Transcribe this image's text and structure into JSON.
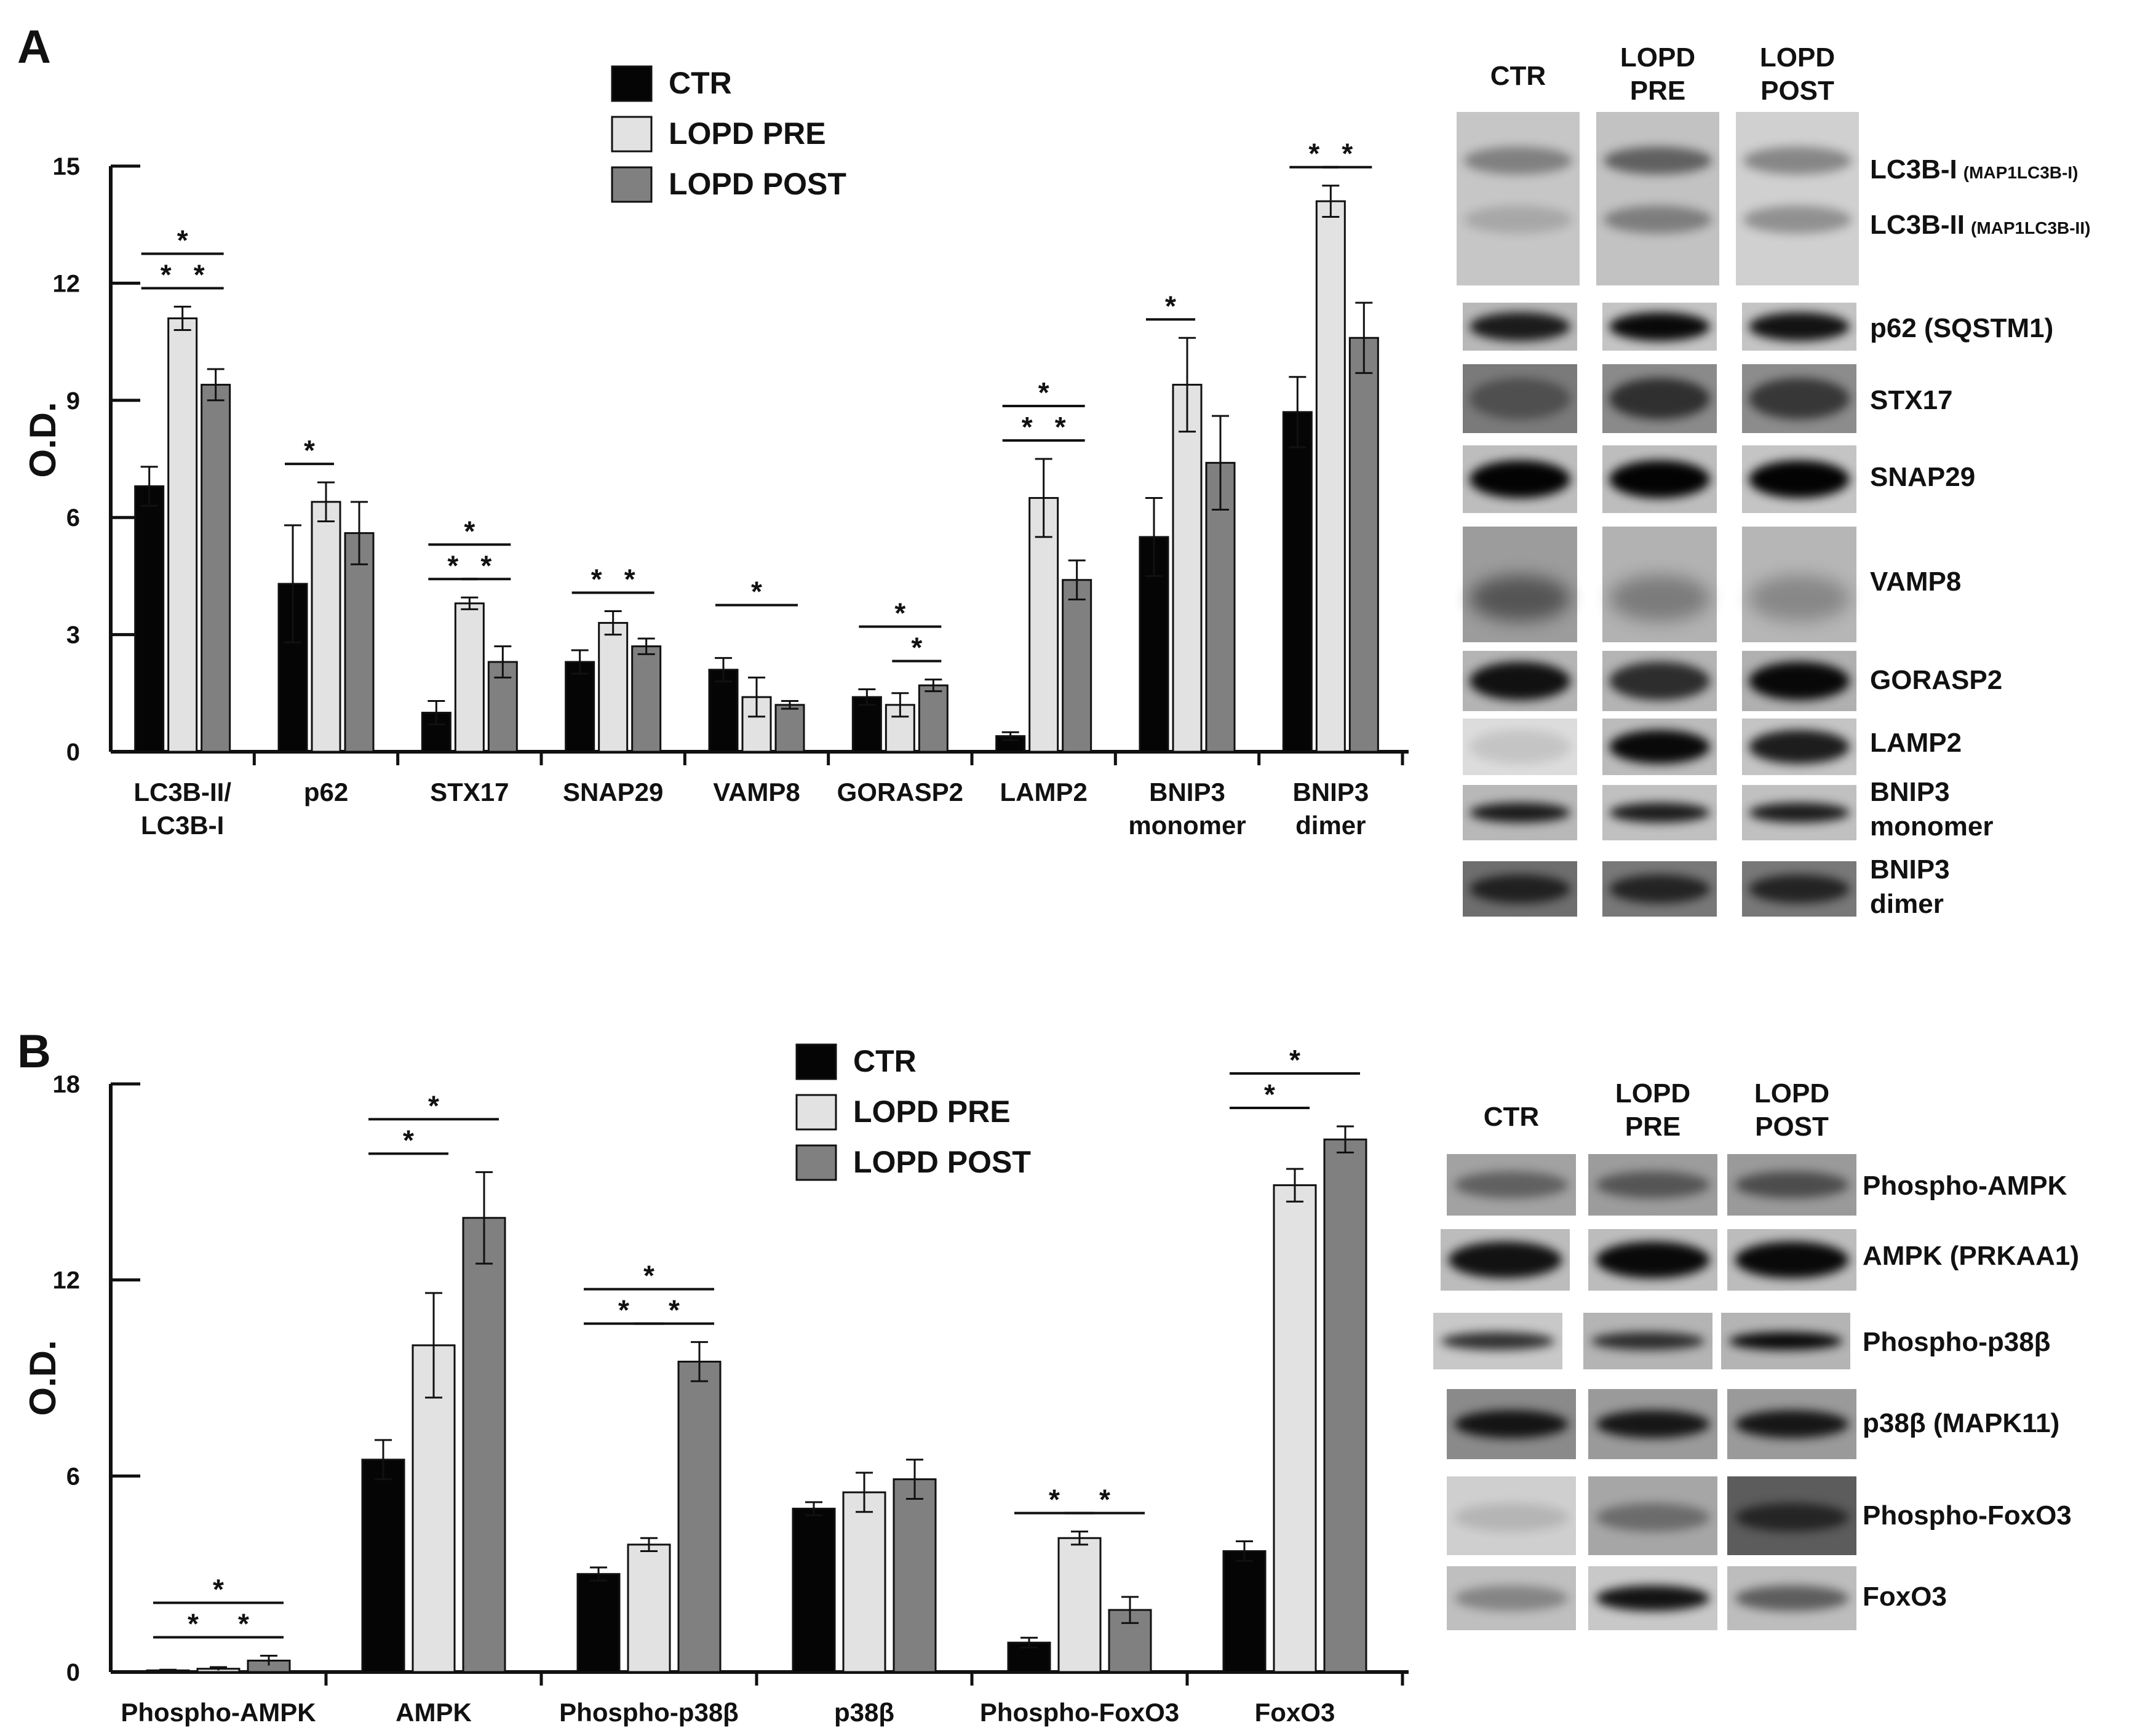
{
  "colors": {
    "ctr": "#050505",
    "pre": "#e2e2e2",
    "post": "#808080",
    "axis": "#111111"
  },
  "legend": [
    "CTR",
    "LOPD PRE",
    "LOPD POST"
  ],
  "chart_data": [
    {
      "panel": "A",
      "type": "bar",
      "ylabel": "O.D.",
      "ylim": [
        0,
        15
      ],
      "yticks": [
        0,
        3,
        6,
        9,
        12,
        15
      ],
      "categories": [
        [
          "LC3B-II/",
          "LC3B-I"
        ],
        [
          "p62"
        ],
        [
          "STX17"
        ],
        [
          "SNAP29"
        ],
        [
          "VAMP8"
        ],
        [
          "GORASP2"
        ],
        [
          "LAMP2"
        ],
        [
          "BNIP3",
          "monomer"
        ],
        [
          "BNIP3",
          "dimer"
        ]
      ],
      "series": [
        {
          "name": "CTR",
          "values": [
            6.8,
            4.3,
            1.0,
            2.3,
            2.1,
            1.4,
            0.4,
            5.5,
            8.7
          ],
          "errors": [
            0.5,
            1.5,
            0.3,
            0.3,
            0.3,
            0.2,
            0.1,
            1.0,
            0.9
          ]
        },
        {
          "name": "LOPD PRE",
          "values": [
            11.1,
            6.4,
            3.8,
            3.3,
            1.4,
            1.2,
            6.5,
            9.4,
            14.1
          ],
          "errors": [
            0.3,
            0.5,
            0.15,
            0.3,
            0.5,
            0.3,
            1.0,
            1.2,
            0.4
          ]
        },
        {
          "name": "LOPD POST",
          "values": [
            9.4,
            5.6,
            2.3,
            2.7,
            1.2,
            1.7,
            4.4,
            7.4,
            10.6
          ],
          "errors": [
            0.4,
            0.8,
            0.4,
            0.2,
            0.1,
            0.15,
            0.5,
            1.2,
            0.9
          ]
        }
      ],
      "significance": [
        {
          "cat": 0,
          "from": 0,
          "to": 1
        },
        {
          "cat": 0,
          "from": 1,
          "to": 2
        },
        {
          "cat": 0,
          "from": 0,
          "to": 2
        },
        {
          "cat": 1,
          "from": 0,
          "to": 1
        },
        {
          "cat": 2,
          "from": 0,
          "to": 1
        },
        {
          "cat": 2,
          "from": 1,
          "to": 2
        },
        {
          "cat": 2,
          "from": 0,
          "to": 2
        },
        {
          "cat": 3,
          "from": 0,
          "to": 1
        },
        {
          "cat": 3,
          "from": 1,
          "to": 2
        },
        {
          "cat": 4,
          "from": 0,
          "to": 2
        },
        {
          "cat": 5,
          "from": 1,
          "to": 2
        },
        {
          "cat": 5,
          "from": 0,
          "to": 2
        },
        {
          "cat": 6,
          "from": 0,
          "to": 1
        },
        {
          "cat": 6,
          "from": 1,
          "to": 2
        },
        {
          "cat": 6,
          "from": 0,
          "to": 2
        },
        {
          "cat": 7,
          "from": 0,
          "to": 1
        },
        {
          "cat": 8,
          "from": 0,
          "to": 1
        },
        {
          "cat": 8,
          "from": 1,
          "to": 2
        }
      ],
      "significance_mark": "*"
    },
    {
      "panel": "B",
      "type": "bar",
      "ylabel": "O.D.",
      "ylim": [
        0,
        18
      ],
      "yticks": [
        0,
        6,
        12,
        18
      ],
      "categories": [
        [
          "Phospho-AMPK"
        ],
        [
          "AMPK"
        ],
        [
          "Phospho-p38β"
        ],
        [
          "p38β"
        ],
        [
          "Phospho-FoxO3"
        ],
        [
          "FoxO3"
        ]
      ],
      "series": [
        {
          "name": "CTR",
          "values": [
            0.05,
            6.5,
            3.0,
            5.0,
            0.9,
            3.7
          ],
          "errors": [
            0.02,
            0.6,
            0.2,
            0.2,
            0.15,
            0.3
          ]
        },
        {
          "name": "LOPD PRE",
          "values": [
            0.1,
            10.0,
            3.9,
            5.5,
            4.1,
            14.9
          ],
          "errors": [
            0.05,
            1.6,
            0.2,
            0.6,
            0.2,
            0.5
          ]
        },
        {
          "name": "LOPD POST",
          "values": [
            0.35,
            13.9,
            9.5,
            5.9,
            1.9,
            16.3
          ],
          "errors": [
            0.15,
            1.4,
            0.6,
            0.6,
            0.4,
            0.4
          ]
        }
      ],
      "significance": [
        {
          "cat": 0,
          "from": 0,
          "to": 1
        },
        {
          "cat": 0,
          "from": 1,
          "to": 2
        },
        {
          "cat": 0,
          "from": 0,
          "to": 2
        },
        {
          "cat": 1,
          "from": 0,
          "to": 1
        },
        {
          "cat": 1,
          "from": 0,
          "to": 2
        },
        {
          "cat": 2,
          "from": 0,
          "to": 1
        },
        {
          "cat": 2,
          "from": 1,
          "to": 2
        },
        {
          "cat": 2,
          "from": 0,
          "to": 2
        },
        {
          "cat": 4,
          "from": 0,
          "to": 1
        },
        {
          "cat": 4,
          "from": 1,
          "to": 2
        },
        {
          "cat": 5,
          "from": 0,
          "to": 1
        },
        {
          "cat": 5,
          "from": 0,
          "to": 2
        }
      ],
      "significance_mark": "*"
    }
  ],
  "blots": {
    "A": {
      "panel_label": "A",
      "columns": [
        [
          "CTR"
        ],
        [
          "LOPD",
          "PRE"
        ],
        [
          "LOPD",
          "POST"
        ]
      ],
      "rows": [
        {
          "label": "LC3B-I",
          "small": "(MAP1LC3B-I)"
        },
        {
          "label": "LC3B-II",
          "small": "(MAP1LC3B-II)"
        },
        {
          "label": "p62 (SQSTM1)",
          "small": ""
        },
        {
          "label": "STX17",
          "small": ""
        },
        {
          "label": "SNAP29",
          "small": ""
        },
        {
          "label": "VAMP8",
          "small": ""
        },
        {
          "label": "GORASP2",
          "small": ""
        },
        {
          "label": "LAMP2",
          "small": ""
        },
        {
          "label": "BNIP3",
          "label2": "monomer",
          "small": ""
        },
        {
          "label": "BNIP3",
          "label2": "dimer",
          "small": ""
        }
      ]
    },
    "B": {
      "panel_label": "B",
      "columns": [
        [
          "CTR"
        ],
        [
          "LOPD",
          "PRE"
        ],
        [
          "LOPD",
          "POST"
        ]
      ],
      "rows": [
        {
          "label": "Phospho-AMPK"
        },
        {
          "label": "AMPK (PRKAA1)"
        },
        {
          "label": "Phospho-p38β"
        },
        {
          "label": "p38β (MAPK11)"
        },
        {
          "label": "Phospho-FoxO3"
        },
        {
          "label": "FoxO3"
        }
      ]
    }
  }
}
